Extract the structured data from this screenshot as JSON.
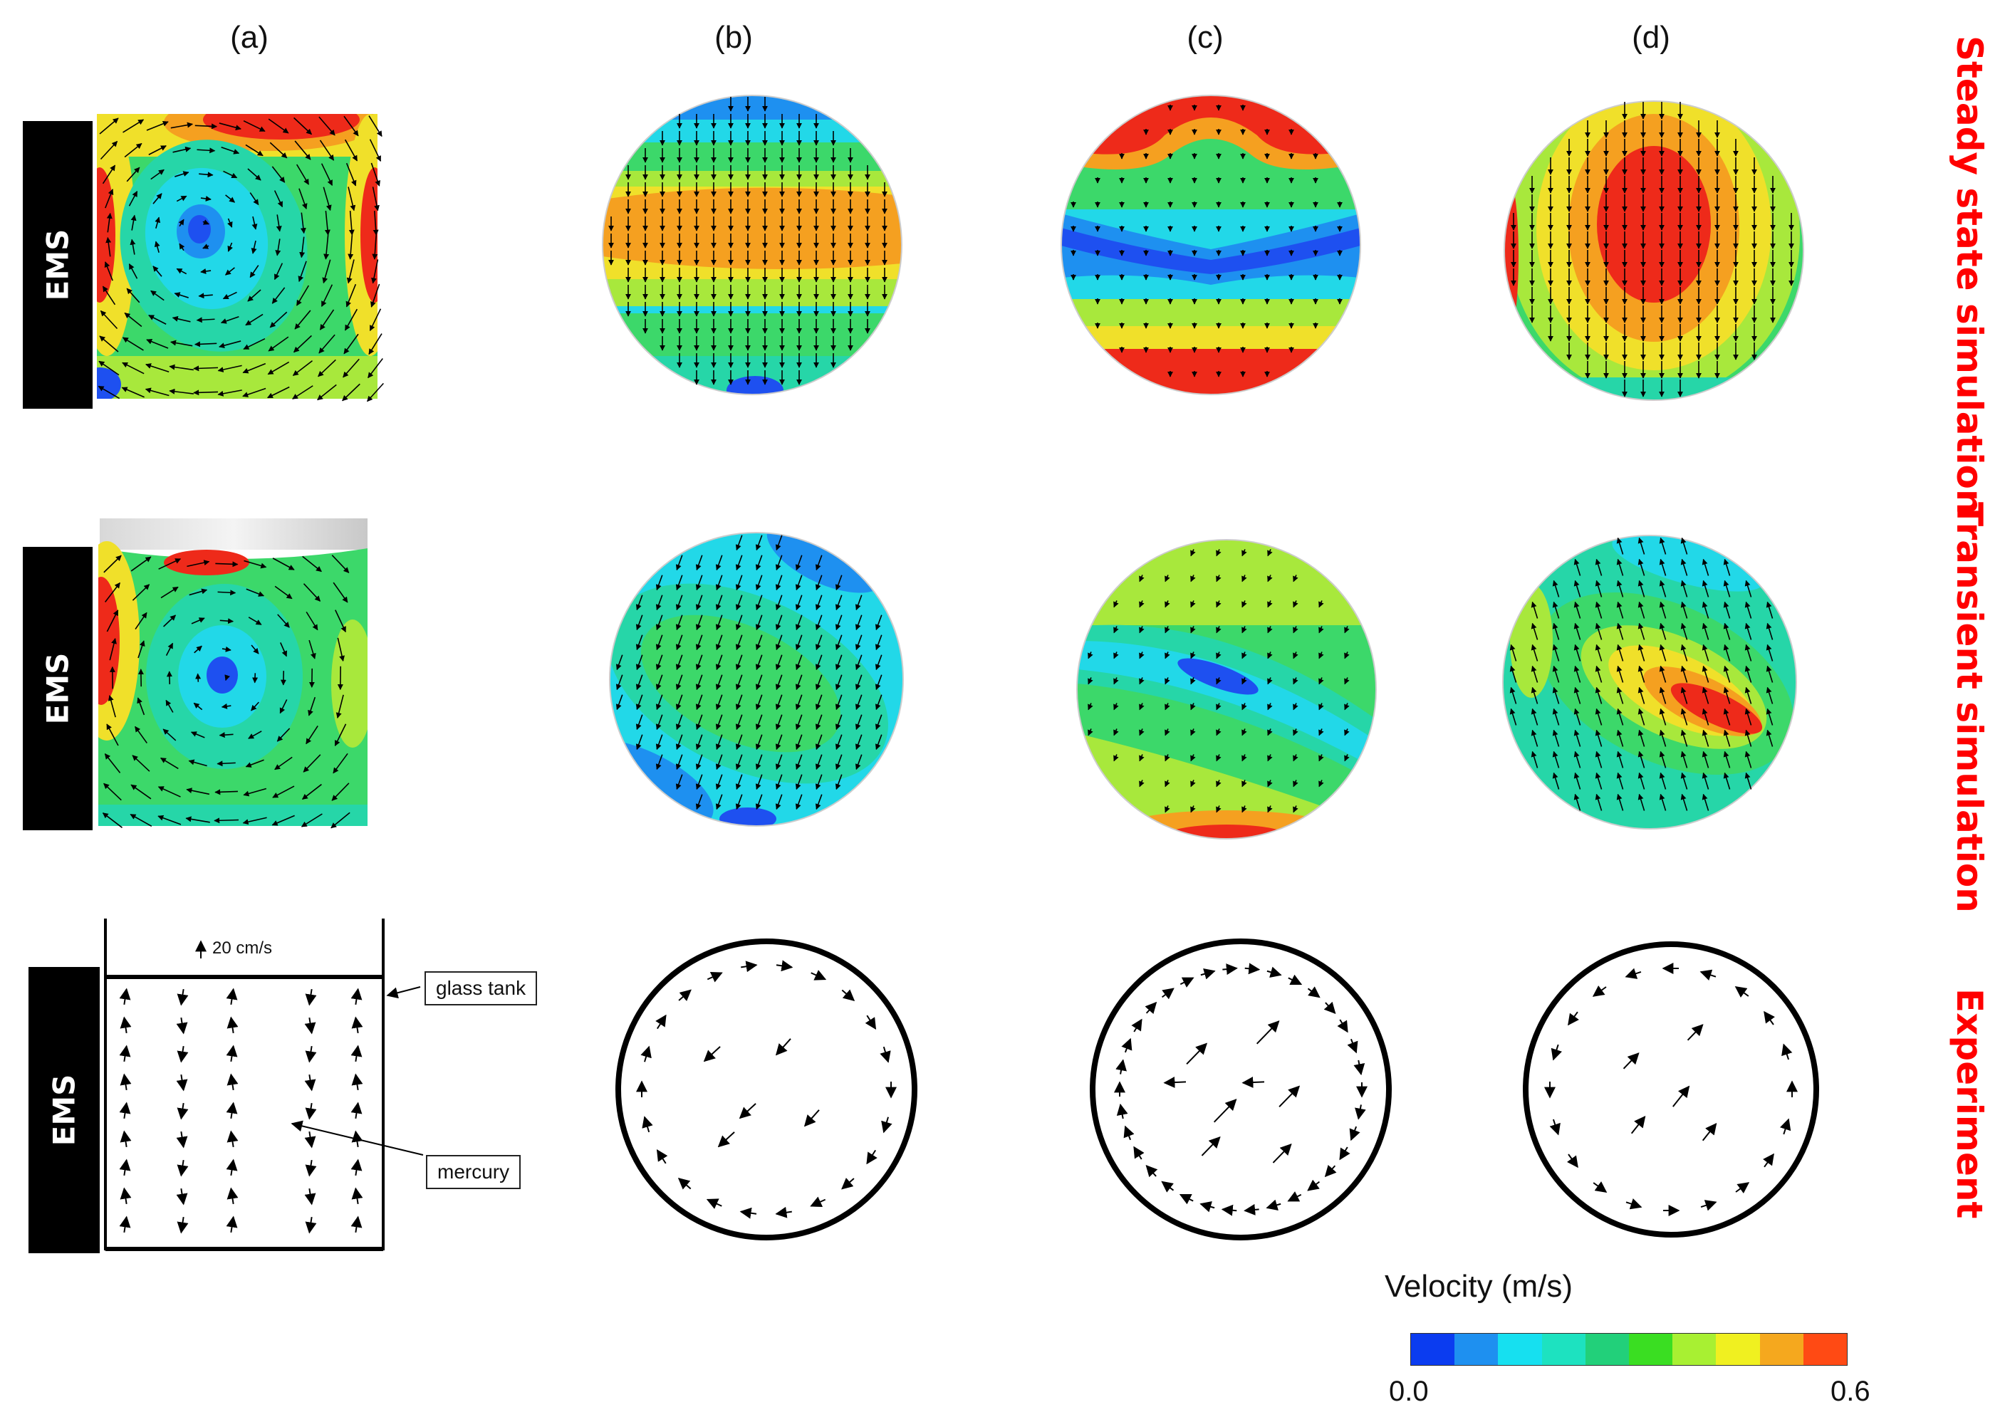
{
  "column_labels": [
    "(a)",
    "(b)",
    "(c)",
    "(d)"
  ],
  "row_labels": [
    "Steady state simulation",
    "Transient simulation",
    "Experiment"
  ],
  "side_label": "EMS",
  "annotations": {
    "scale_arrow": "20 cm/s",
    "glass_tank": "glass tank",
    "mercury": "mercury"
  },
  "colorbar": {
    "title": "Velocity (m/s)",
    "min_label": "0.0",
    "max_label": "0.6",
    "colors": [
      "#0b3cf0",
      "#1e90f0",
      "#16e0f0",
      "#1de2c0",
      "#22d07a",
      "#3ade22",
      "#a8f032",
      "#f0f020",
      "#f5a81e",
      "#ff4a14"
    ]
  },
  "palette": {
    "blue": "#1e50f0",
    "cyan": "#22d8e8",
    "teal": "#26d6a8",
    "green": "#3cd86a",
    "yellowgreen": "#a8e83c",
    "yellow": "#f0e02a",
    "orange": "#f5a020",
    "red": "#ee2a1a",
    "row_label_color": "#ff0000"
  }
}
